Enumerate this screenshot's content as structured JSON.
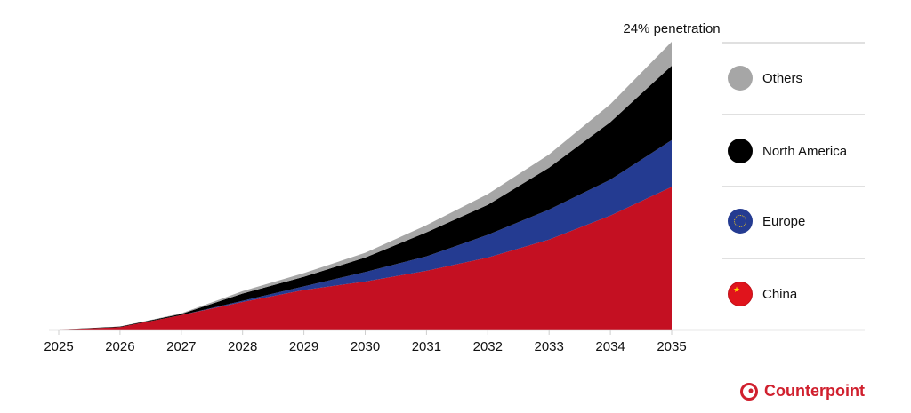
{
  "chart_data": {
    "type": "area",
    "stacked": true,
    "categories": [
      "2025",
      "2026",
      "2027",
      "2028",
      "2029",
      "2030",
      "2031",
      "2032",
      "2033",
      "2034",
      "2035"
    ],
    "series": [
      {
        "name": "China",
        "color": "#c41022",
        "values": [
          0,
          0.2,
          1.2,
          2.3,
          3.3,
          4.0,
          4.9,
          6.0,
          7.5,
          9.5,
          11.9
        ]
      },
      {
        "name": "Europe",
        "color": "#243b91",
        "values": [
          0,
          0,
          0,
          0.1,
          0.3,
          0.8,
          1.2,
          1.9,
          2.5,
          3.0,
          3.9
        ]
      },
      {
        "name": "North America",
        "color": "#000000",
        "values": [
          0,
          0.05,
          0.1,
          0.6,
          0.8,
          1.2,
          2.0,
          2.5,
          3.5,
          4.8,
          6.2
        ]
      },
      {
        "name": "Others",
        "color": "#a6a6a6",
        "values": [
          0,
          0,
          0.05,
          0.2,
          0.3,
          0.4,
          0.6,
          0.9,
          1.1,
          1.5,
          2.0
        ]
      }
    ],
    "ylim": [
      0,
      24
    ],
    "unit": "%",
    "annotation": "24% penetration",
    "legend_placement": "right",
    "legend_order": [
      "Others",
      "North America",
      "Europe",
      "China"
    ],
    "grid": false
  },
  "brand": {
    "name": "Counterpoint",
    "color": "#d0202e"
  }
}
